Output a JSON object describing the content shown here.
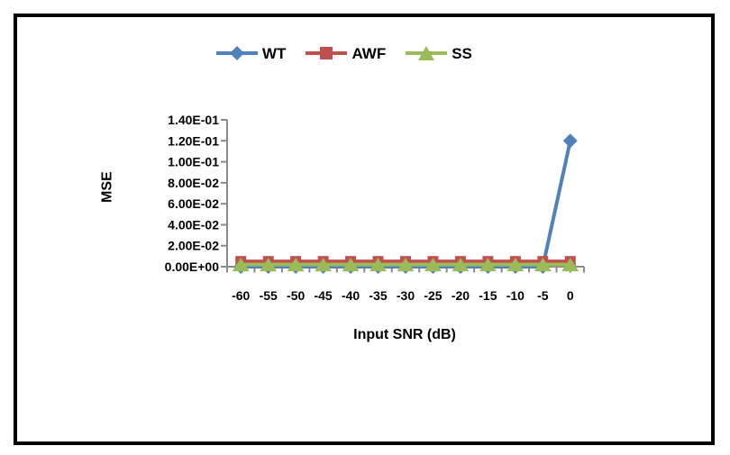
{
  "frame": {
    "border_color": "#000000",
    "background": "#ffffff"
  },
  "chart_data": {
    "type": "line",
    "title": "",
    "xlabel": "Input SNR (dB)",
    "ylabel": "MSE",
    "categories": [
      -60,
      -55,
      -50,
      -45,
      -40,
      -35,
      -30,
      -25,
      -20,
      -15,
      -10,
      -5,
      0
    ],
    "x_tick_labels": [
      "-60",
      "-55",
      "-50",
      "-45",
      "-40",
      "-35",
      "-30",
      "-25",
      "-20",
      "-15",
      "-10",
      "-5",
      "0"
    ],
    "y_tick_labels": [
      "0.00E+00",
      "2.00E-02",
      "4.00E-02",
      "6.00E-02",
      "8.00E-02",
      "1.00E-01",
      "1.20E-01",
      "1.40E-01"
    ],
    "ylim": [
      0,
      0.14
    ],
    "y_tick_step": 0.02,
    "grid": false,
    "legend_position": "top-center",
    "axis_color": "#8A8A8A",
    "text_color": "#000000",
    "series": [
      {
        "name": "WT",
        "marker": "diamond",
        "color": "#4F81BD",
        "values": [
          0,
          0,
          0,
          0,
          0,
          0,
          0,
          0,
          0,
          0,
          0,
          0,
          0.12
        ]
      },
      {
        "name": "AWF",
        "marker": "square",
        "color": "#C0504D",
        "values": [
          0.005,
          0.005,
          0.005,
          0.005,
          0.005,
          0.005,
          0.005,
          0.005,
          0.005,
          0.005,
          0.005,
          0.005,
          0.005
        ]
      },
      {
        "name": "SS",
        "marker": "triangle",
        "color": "#9BBB59",
        "values": [
          0.002,
          0.002,
          0.002,
          0.002,
          0.002,
          0.002,
          0.002,
          0.002,
          0.002,
          0.002,
          0.002,
          0.002,
          0.002
        ]
      }
    ]
  }
}
